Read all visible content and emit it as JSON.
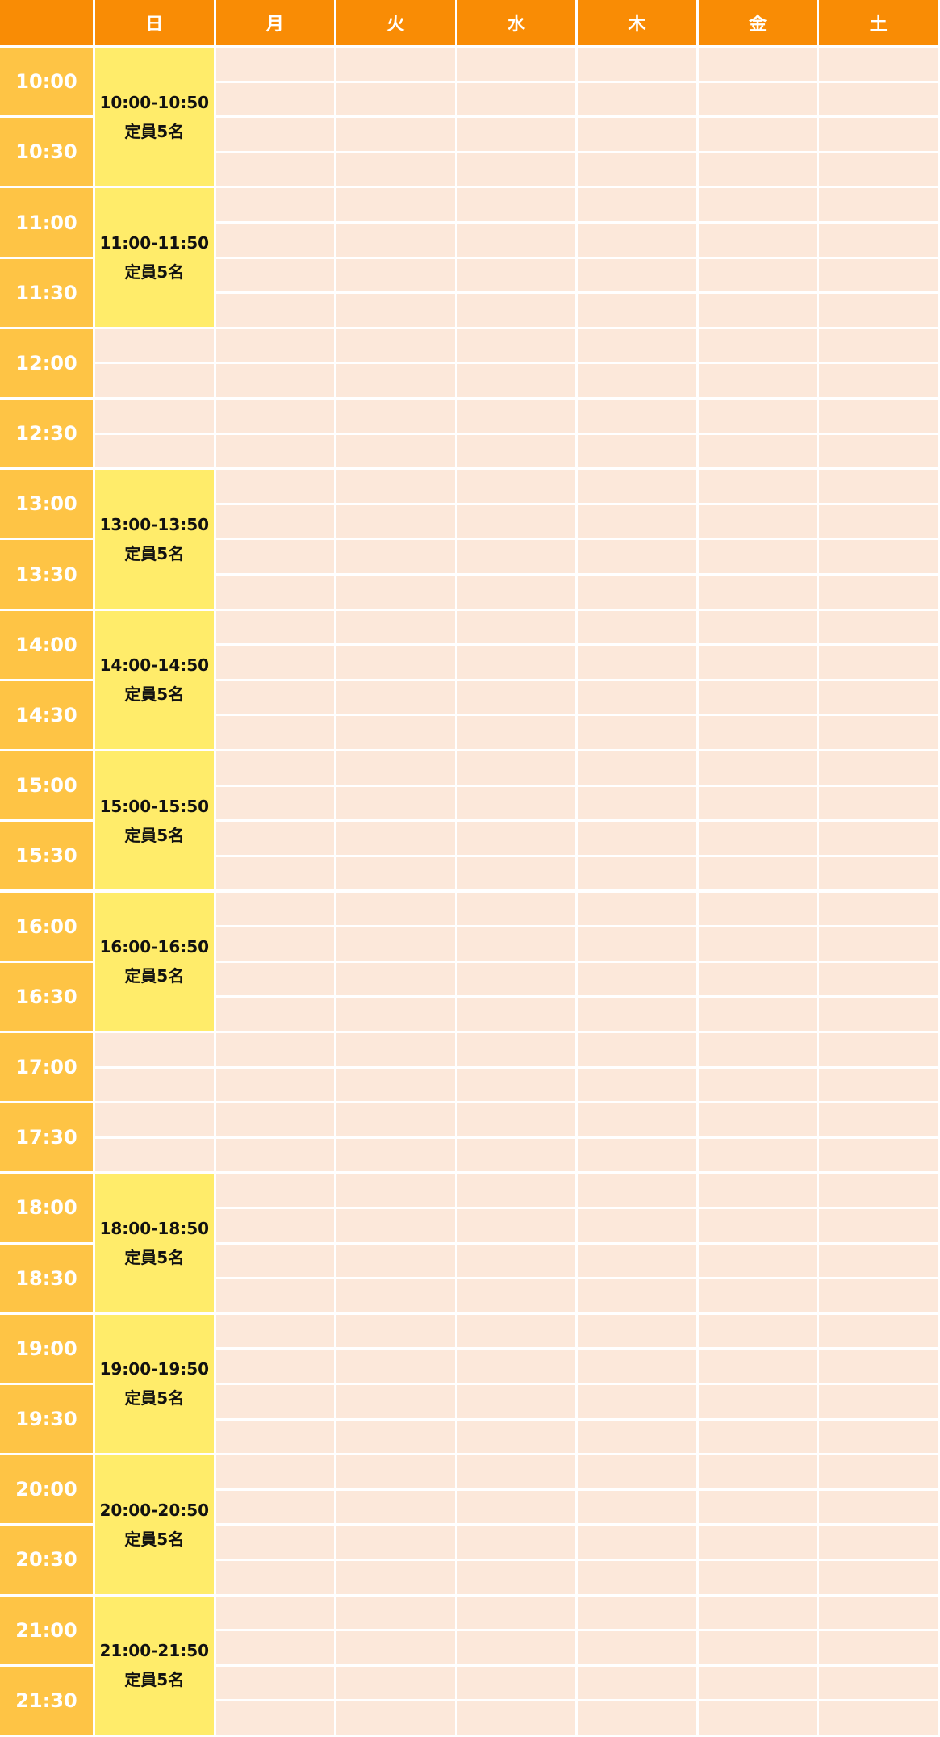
{
  "days": [
    "日",
    "月",
    "火",
    "水",
    "木",
    "金",
    "土"
  ],
  "times": [
    "10:00",
    "10:30",
    "11:00",
    "11:30",
    "12:00",
    "12:30",
    "13:00",
    "13:30",
    "14:00",
    "14:30",
    "15:00",
    "15:30",
    "16:00",
    "16:30",
    "17:00",
    "17:30",
    "18:00",
    "18:30",
    "19:00",
    "19:30",
    "20:00",
    "20:30",
    "21:00",
    "21:30"
  ],
  "sunday_sessions": [
    {
      "time": "10:00-10:50",
      "capacity": "定員5名"
    },
    {
      "time": "11:00-11:50",
      "capacity": "定員5名"
    },
    null,
    {
      "time": "13:00-13:50",
      "capacity": "定員5名"
    },
    {
      "time": "14:00-14:50",
      "capacity": "定員5名"
    },
    {
      "time": "15:00-15:50",
      "capacity": "定員5名"
    },
    {
      "time": "16:00-16:50",
      "capacity": "定員5名"
    },
    null,
    {
      "time": "18:00-18:50",
      "capacity": "定員5名"
    },
    {
      "time": "19:00-19:50",
      "capacity": "定員5名"
    },
    {
      "time": "20:00-20:50",
      "capacity": "定員5名"
    },
    {
      "time": "21:00-21:50",
      "capacity": "定員5名"
    }
  ]
}
